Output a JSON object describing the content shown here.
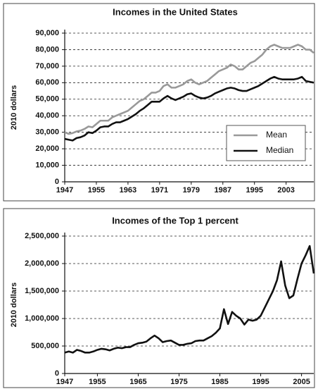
{
  "chart_data": [
    {
      "type": "line",
      "title": "Incomes in the United States",
      "ylabel": "2010 dollars",
      "x": [
        1947,
        1948,
        1949,
        1950,
        1951,
        1952,
        1953,
        1954,
        1955,
        1956,
        1957,
        1958,
        1959,
        1960,
        1961,
        1962,
        1963,
        1964,
        1965,
        1966,
        1967,
        1968,
        1969,
        1970,
        1971,
        1972,
        1973,
        1974,
        1975,
        1976,
        1977,
        1978,
        1979,
        1980,
        1981,
        1982,
        1983,
        1984,
        1985,
        1986,
        1987,
        1988,
        1989,
        1990,
        1991,
        1992,
        1993,
        1994,
        1995,
        1996,
        1997,
        1998,
        1999,
        2000,
        2001,
        2002,
        2003,
        2004,
        2005,
        2006,
        2007,
        2008,
        2009,
        2010
      ],
      "series": [
        {
          "name": "Mean",
          "color": "#999999",
          "values": [
            30000,
            29000,
            29500,
            30500,
            31000,
            32000,
            33500,
            33000,
            35000,
            37000,
            37000,
            37000,
            39000,
            40000,
            41000,
            42000,
            43000,
            45000,
            47000,
            49000,
            50000,
            52000,
            54000,
            54000,
            55000,
            58000,
            59000,
            57000,
            57000,
            58000,
            59000,
            61000,
            62000,
            60000,
            59000,
            60000,
            61000,
            63000,
            65000,
            67000,
            68000,
            69000,
            71000,
            70000,
            68000,
            68000,
            70000,
            72000,
            73000,
            75000,
            77000,
            80000,
            82000,
            83000,
            82000,
            81000,
            81000,
            81000,
            82000,
            83000,
            82000,
            80000,
            80000,
            78000
          ]
        },
        {
          "name": "Median",
          "color": "#111111",
          "values": [
            26000,
            25500,
            25000,
            26500,
            27000,
            28000,
            30000,
            29500,
            31000,
            33000,
            33500,
            33500,
            35000,
            36000,
            36000,
            37000,
            38000,
            39500,
            41000,
            43000,
            44500,
            46500,
            48500,
            48500,
            48500,
            50500,
            52000,
            50500,
            49500,
            50500,
            51500,
            53000,
            53500,
            52000,
            51000,
            50500,
            51000,
            52000,
            53500,
            54500,
            55500,
            56500,
            57000,
            56500,
            55500,
            55000,
            55000,
            56000,
            57000,
            58000,
            59500,
            61000,
            62500,
            63500,
            62500,
            62000,
            62000,
            62000,
            62000,
            62500,
            63500,
            61000,
            60500,
            60000
          ]
        }
      ],
      "xlim": [
        1947,
        2010
      ],
      "xticks": [
        1947,
        1955,
        1963,
        1971,
        1979,
        1987,
        1995,
        2003
      ],
      "ylim": [
        0,
        90000
      ],
      "yticks": [
        0,
        {
          "value": 10000,
          "label": "10,000"
        },
        {
          "value": 20000,
          "label": "20,000"
        },
        {
          "value": 30000,
          "label": "30,000"
        },
        {
          "value": 40000,
          "label": "40,000"
        },
        {
          "value": 50000,
          "label": "50,000"
        },
        {
          "value": 60000,
          "label": "60,000"
        },
        {
          "value": 70000,
          "label": "70,000"
        },
        {
          "value": 80000,
          "label": "80,000"
        },
        {
          "value": 90000,
          "label": "90,000"
        }
      ],
      "grid": true,
      "legend": "lower right"
    },
    {
      "type": "line",
      "title": "Incomes of the Top 1 percent",
      "ylabel": "2010 dollars",
      "x": [
        1947,
        1948,
        1949,
        1950,
        1951,
        1952,
        1953,
        1954,
        1955,
        1956,
        1957,
        1958,
        1959,
        1960,
        1961,
        1962,
        1963,
        1964,
        1965,
        1966,
        1967,
        1968,
        1969,
        1970,
        1971,
        1972,
        1973,
        1974,
        1975,
        1976,
        1977,
        1978,
        1979,
        1980,
        1981,
        1982,
        1983,
        1984,
        1985,
        1986,
        1987,
        1988,
        1989,
        1990,
        1991,
        1992,
        1993,
        1994,
        1995,
        1996,
        1997,
        1998,
        1999,
        2000,
        2001,
        2002,
        2003,
        2004,
        2005,
        2006,
        2007,
        2008
      ],
      "series": [
        {
          "color": "#111111",
          "values": [
            380000,
            400000,
            380000,
            430000,
            410000,
            380000,
            380000,
            400000,
            430000,
            450000,
            440000,
            420000,
            450000,
            470000,
            460000,
            480000,
            480000,
            520000,
            550000,
            560000,
            580000,
            640000,
            690000,
            640000,
            570000,
            590000,
            600000,
            560000,
            520000,
            520000,
            540000,
            550000,
            590000,
            600000,
            600000,
            640000,
            680000,
            740000,
            820000,
            1170000,
            900000,
            1120000,
            1050000,
            1000000,
            890000,
            980000,
            960000,
            980000,
            1050000,
            1200000,
            1350000,
            1500000,
            1700000,
            2040000,
            1600000,
            1370000,
            1420000,
            1720000,
            2000000,
            2150000,
            2320000,
            1820000
          ]
        }
      ],
      "xlim": [
        1947,
        2008
      ],
      "xticks": [
        1947,
        1955,
        1965,
        1975,
        1985,
        1995,
        2005
      ],
      "ylim": [
        0,
        2500000
      ],
      "yticks": [
        0,
        {
          "value": 500000,
          "label": "500,000"
        },
        {
          "value": 1000000,
          "label": "1,000,000"
        },
        {
          "value": 1500000,
          "label": "1,500,000"
        },
        {
          "value": 2000000,
          "label": "2,000,000"
        },
        {
          "value": 2500000,
          "label": "2,500,000"
        }
      ],
      "grid": true
    }
  ]
}
